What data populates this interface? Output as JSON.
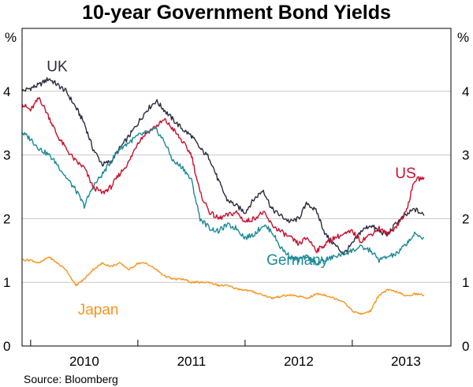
{
  "chart_data": {
    "type": "line",
    "title": "10-year Government Bond Yields",
    "ylabel_left": "%",
    "ylabel_right": "%",
    "ylim": [
      0,
      5
    ],
    "yticks": [
      0,
      1,
      2,
      3,
      4
    ],
    "xlim": [
      2009.42,
      2013.42
    ],
    "xtick_labels": [
      {
        "label": "2010",
        "center": 2010.0
      },
      {
        "label": "2011",
        "center": 2011.0
      },
      {
        "label": "2012",
        "center": 2012.0
      },
      {
        "label": "2013",
        "center": 2013.0
      }
    ],
    "xtick_marks": [
      2009.5,
      2010.5,
      2011.5,
      2012.5,
      2013.5
    ],
    "source": "Source: Bloomberg",
    "series": [
      {
        "name": "UK",
        "color": "#2b2b3f",
        "x": [
          2009.42,
          2009.5,
          2009.58,
          2009.67,
          2009.75,
          2009.83,
          2009.92,
          2010.0,
          2010.08,
          2010.17,
          2010.25,
          2010.33,
          2010.42,
          2010.5,
          2010.58,
          2010.67,
          2010.75,
          2010.83,
          2010.92,
          2011.0,
          2011.08,
          2011.17,
          2011.25,
          2011.33,
          2011.42,
          2011.5,
          2011.58,
          2011.67,
          2011.75,
          2011.83,
          2011.92,
          2012.0,
          2012.08,
          2012.17,
          2012.25,
          2012.33,
          2012.42,
          2012.5,
          2012.58,
          2012.67,
          2012.75,
          2012.83,
          2012.92,
          2013.0,
          2013.08,
          2013.17
        ],
        "values": [
          4.0,
          4.05,
          4.1,
          4.2,
          4.1,
          4.0,
          3.75,
          3.5,
          3.1,
          2.85,
          2.9,
          3.1,
          3.3,
          3.5,
          3.7,
          3.85,
          3.7,
          3.55,
          3.4,
          3.3,
          3.1,
          2.95,
          2.6,
          2.3,
          2.2,
          2.1,
          2.3,
          2.45,
          2.15,
          2.05,
          1.95,
          2.0,
          2.25,
          2.1,
          1.75,
          1.6,
          1.45,
          1.6,
          1.8,
          1.9,
          1.8,
          1.75,
          1.95,
          2.05,
          2.15,
          2.05
        ]
      },
      {
        "name": "US",
        "color": "#c8102e",
        "x": [
          2009.42,
          2009.5,
          2009.58,
          2009.67,
          2009.75,
          2009.83,
          2009.92,
          2010.0,
          2010.08,
          2010.17,
          2010.25,
          2010.33,
          2010.42,
          2010.5,
          2010.58,
          2010.67,
          2010.75,
          2010.83,
          2010.92,
          2011.0,
          2011.08,
          2011.17,
          2011.25,
          2011.33,
          2011.42,
          2011.5,
          2011.58,
          2011.67,
          2011.75,
          2011.83,
          2011.92,
          2012.0,
          2012.08,
          2012.17,
          2012.25,
          2012.33,
          2012.42,
          2012.5,
          2012.58,
          2012.67,
          2012.75,
          2012.83,
          2012.92,
          2013.0,
          2013.08,
          2013.17
        ],
        "values": [
          3.8,
          3.7,
          3.9,
          3.6,
          3.3,
          3.1,
          2.9,
          2.8,
          2.5,
          2.4,
          2.5,
          2.7,
          2.9,
          3.2,
          3.35,
          3.45,
          3.55,
          3.4,
          3.2,
          3.0,
          2.4,
          2.1,
          2.0,
          2.05,
          2.1,
          1.95,
          2.0,
          2.1,
          1.9,
          1.8,
          1.7,
          1.6,
          1.7,
          1.5,
          1.6,
          1.7,
          1.75,
          1.8,
          1.65,
          1.75,
          1.85,
          1.75,
          1.9,
          2.1,
          2.6,
          2.65
        ]
      },
      {
        "name": "Germany",
        "color": "#1b8a97",
        "x": [
          2009.42,
          2009.5,
          2009.58,
          2009.67,
          2009.75,
          2009.83,
          2009.92,
          2010.0,
          2010.08,
          2010.17,
          2010.25,
          2010.33,
          2010.42,
          2010.5,
          2010.58,
          2010.67,
          2010.75,
          2010.83,
          2010.92,
          2011.0,
          2011.08,
          2011.17,
          2011.25,
          2011.33,
          2011.42,
          2011.5,
          2011.58,
          2011.67,
          2011.75,
          2011.83,
          2011.92,
          2012.0,
          2012.08,
          2012.17,
          2012.25,
          2012.33,
          2012.42,
          2012.5,
          2012.58,
          2012.67,
          2012.75,
          2012.83,
          2012.92,
          2013.0,
          2013.08,
          2013.17
        ],
        "values": [
          3.35,
          3.25,
          3.1,
          3.0,
          2.85,
          2.65,
          2.45,
          2.2,
          2.5,
          2.7,
          2.9,
          3.1,
          3.2,
          3.3,
          3.35,
          3.4,
          3.2,
          2.9,
          2.8,
          2.6,
          2.0,
          1.85,
          1.8,
          1.9,
          1.85,
          1.7,
          1.75,
          1.9,
          1.8,
          1.55,
          1.4,
          1.35,
          1.4,
          1.3,
          1.35,
          1.4,
          1.45,
          1.5,
          1.55,
          1.5,
          1.35,
          1.4,
          1.45,
          1.6,
          1.75,
          1.7
        ]
      },
      {
        "name": "Japan",
        "color": "#f7941d",
        "x": [
          2009.42,
          2009.5,
          2009.58,
          2009.67,
          2009.75,
          2009.83,
          2009.92,
          2010.0,
          2010.08,
          2010.17,
          2010.25,
          2010.33,
          2010.42,
          2010.5,
          2010.58,
          2010.67,
          2010.75,
          2010.83,
          2010.92,
          2011.0,
          2011.08,
          2011.17,
          2011.25,
          2011.33,
          2011.42,
          2011.5,
          2011.58,
          2011.67,
          2011.75,
          2011.83,
          2011.92,
          2012.0,
          2012.08,
          2012.17,
          2012.25,
          2012.33,
          2012.42,
          2012.5,
          2012.58,
          2012.67,
          2012.75,
          2012.83,
          2012.92,
          2013.0,
          2013.08,
          2013.17
        ],
        "values": [
          1.35,
          1.35,
          1.3,
          1.4,
          1.3,
          1.2,
          0.95,
          1.05,
          1.2,
          1.3,
          1.25,
          1.3,
          1.2,
          1.3,
          1.3,
          1.2,
          1.1,
          1.05,
          1.05,
          1.0,
          1.0,
          1.0,
          0.95,
          0.95,
          0.9,
          0.88,
          0.85,
          0.8,
          0.75,
          0.78,
          0.8,
          0.78,
          0.75,
          0.82,
          0.8,
          0.75,
          0.7,
          0.55,
          0.5,
          0.55,
          0.8,
          0.88,
          0.85,
          0.78,
          0.82,
          0.8
        ]
      }
    ],
    "annotations": [
      {
        "text": "UK",
        "color": "#2b2b3f",
        "x": 2009.65,
        "y": 4.4
      },
      {
        "text": "US",
        "color": "#c8102e",
        "x": 2012.9,
        "y": 2.72
      },
      {
        "text": "Germany",
        "color": "#1b8a97",
        "x": 2011.7,
        "y": 1.36
      },
      {
        "text": "Japan",
        "color": "#f7941d",
        "x": 2009.94,
        "y": 0.58
      }
    ]
  }
}
